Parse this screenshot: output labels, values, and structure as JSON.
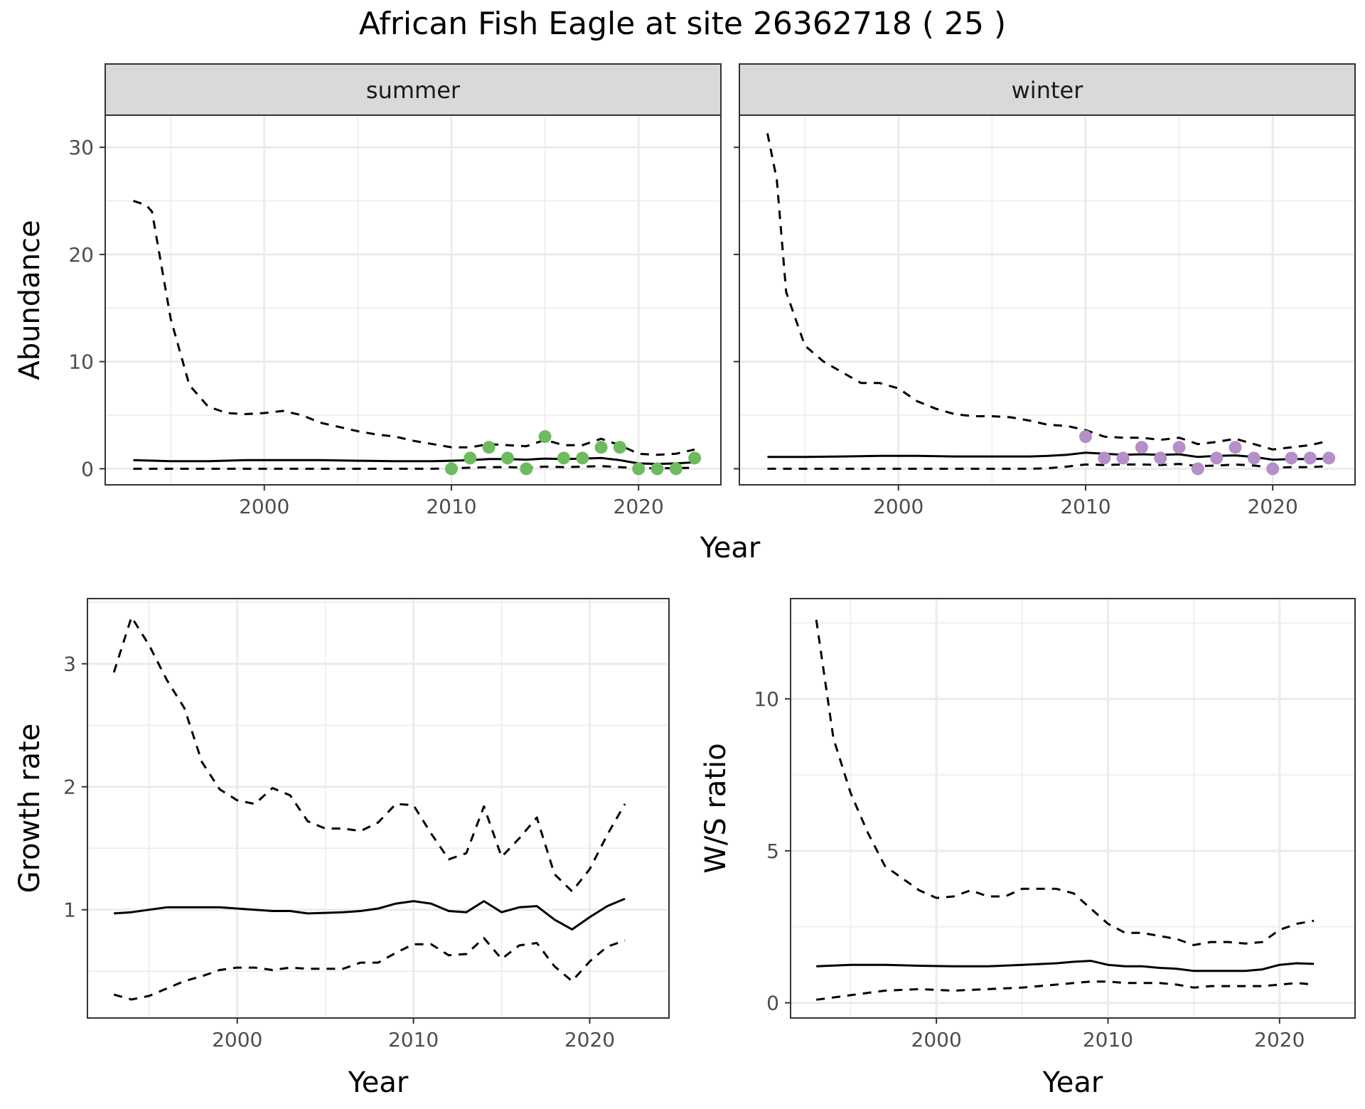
{
  "title": "African Fish Eagle at site 26362718 ( 25 )",
  "colors": {
    "summer_points": "#6dbb5f",
    "winter_points": "#b48fc8",
    "lines": "#000000",
    "strip_fill": "#d9d9d9",
    "grid": "#ebebeb"
  },
  "chart_data": [
    {
      "type": "line",
      "facet": "summer",
      "title": "",
      "xlabel": "Year",
      "ylabel": "Abundance",
      "xlim": [
        1991.5,
        2024.4
      ],
      "ylim": [
        -1.5,
        33
      ],
      "xticks": [
        2000,
        2010,
        2020
      ],
      "yticks": [
        0,
        10,
        20,
        30
      ],
      "grid": true,
      "series": [
        {
          "style": "solid",
          "x": [
            1993,
            1995,
            1997,
            1999,
            2001,
            2003,
            2005,
            2007,
            2009,
            2010,
            2011,
            2012,
            2013,
            2014,
            2015,
            2016,
            2017,
            2018,
            2019,
            2020,
            2021,
            2022,
            2023
          ],
          "y": [
            0.8,
            0.7,
            0.7,
            0.8,
            0.8,
            0.8,
            0.75,
            0.7,
            0.7,
            0.75,
            0.8,
            0.9,
            0.9,
            0.85,
            0.95,
            0.9,
            0.95,
            1.0,
            0.8,
            0.5,
            0.45,
            0.5,
            0.6
          ]
        },
        {
          "style": "dashed",
          "x": [
            1993,
            1993.7,
            1994,
            1995,
            1996,
            1997,
            1998,
            1999,
            2000,
            2001,
            2002,
            2003,
            2004,
            2005,
            2006,
            2007,
            2008,
            2009,
            2010,
            2011,
            2012,
            2013,
            2014,
            2015,
            2016,
            2017,
            2018,
            2019,
            2020,
            2021,
            2022,
            2023
          ],
          "y": [
            25,
            24.6,
            24,
            14,
            7.8,
            5.8,
            5.2,
            5.1,
            5.2,
            5.4,
            5.0,
            4.3,
            3.9,
            3.5,
            3.2,
            3.0,
            2.6,
            2.3,
            2.0,
            2.0,
            2.3,
            2.2,
            2.1,
            2.7,
            2.2,
            2.2,
            2.8,
            2.2,
            1.4,
            1.3,
            1.4,
            1.8
          ]
        },
        {
          "style": "dashed",
          "x": [
            1993,
            1995,
            1997,
            1999,
            2001,
            2003,
            2005,
            2007,
            2009,
            2010,
            2011,
            2012,
            2013,
            2014,
            2015,
            2016,
            2017,
            2018,
            2019,
            2020,
            2021,
            2022,
            2023
          ],
          "y": [
            0,
            0,
            0,
            0,
            0,
            0,
            0,
            0,
            0,
            0.05,
            0.1,
            0.15,
            0.15,
            0.1,
            0.2,
            0.15,
            0.2,
            0.25,
            0.15,
            0.05,
            0.05,
            0.05,
            0.1
          ]
        }
      ],
      "points": {
        "x": [
          2010,
          2011,
          2012,
          2013,
          2014,
          2015,
          2016,
          2017,
          2018,
          2019,
          2020,
          2021,
          2022,
          2023
        ],
        "y": [
          0,
          1,
          2,
          1,
          0,
          3,
          1,
          1,
          2,
          2,
          0,
          0,
          0,
          1
        ]
      }
    },
    {
      "type": "line",
      "facet": "winter",
      "title": "",
      "xlabel": "Year",
      "ylabel": "Abundance",
      "xlim": [
        1991.5,
        2024.4
      ],
      "ylim": [
        -1.5,
        33
      ],
      "xticks": [
        2000,
        2010,
        2020
      ],
      "yticks": [
        0,
        10,
        20,
        30
      ],
      "grid": true,
      "series": [
        {
          "style": "solid",
          "x": [
            1993,
            1995,
            1997,
            1999,
            2001,
            2003,
            2005,
            2007,
            2008,
            2009,
            2010,
            2011,
            2012,
            2013,
            2014,
            2015,
            2016,
            2017,
            2018,
            2019,
            2020,
            2021,
            2022,
            2023
          ],
          "y": [
            1.1,
            1.1,
            1.15,
            1.2,
            1.2,
            1.15,
            1.15,
            1.15,
            1.2,
            1.3,
            1.5,
            1.4,
            1.3,
            1.35,
            1.3,
            1.35,
            1.1,
            1.2,
            1.25,
            1.1,
            0.85,
            0.9,
            0.9,
            0.95
          ]
        },
        {
          "style": "dashed",
          "x": [
            1993,
            1993.5,
            1994,
            1995,
            1996,
            1997,
            1998,
            1999,
            2000,
            2001,
            2002,
            2003,
            2004,
            2005,
            2006,
            2007,
            2008,
            2009,
            2010,
            2011,
            2012,
            2013,
            2014,
            2015,
            2016,
            2017,
            2018,
            2019,
            2020,
            2021,
            2022,
            2023
          ],
          "y": [
            31.3,
            27,
            16.5,
            11.5,
            10,
            9,
            8,
            8,
            7.5,
            6.3,
            5.6,
            5.1,
            4.9,
            4.9,
            4.8,
            4.5,
            4.1,
            4.0,
            3.6,
            3.0,
            2.9,
            2.9,
            2.7,
            2.9,
            2.3,
            2.5,
            2.8,
            2.3,
            1.8,
            2.0,
            2.2,
            2.6
          ]
        },
        {
          "style": "dashed",
          "x": [
            1993,
            1995,
            1997,
            1999,
            2001,
            2003,
            2005,
            2007,
            2008,
            2009,
            2010,
            2011,
            2012,
            2013,
            2014,
            2015,
            2016,
            2017,
            2018,
            2019,
            2020,
            2021,
            2022,
            2023
          ],
          "y": [
            0,
            0,
            0,
            0,
            0,
            0,
            0,
            0,
            0.05,
            0.2,
            0.4,
            0.35,
            0.4,
            0.4,
            0.35,
            0.45,
            0.25,
            0.3,
            0.4,
            0.3,
            0.1,
            0.15,
            0.15,
            0.25
          ]
        }
      ],
      "points": {
        "x": [
          2010,
          2011,
          2012,
          2013,
          2014,
          2015,
          2016,
          2017,
          2018,
          2019,
          2020,
          2021,
          2022,
          2023
        ],
        "y": [
          3,
          1,
          1,
          2,
          1,
          2,
          0,
          1,
          2,
          1,
          0,
          1,
          1,
          1
        ]
      }
    },
    {
      "type": "line",
      "title": "",
      "xlabel": "Year",
      "ylabel": "Growth rate",
      "xlim": [
        1991.5,
        2024.5
      ],
      "ylim": [
        0.12,
        3.53
      ],
      "xticks": [
        2000,
        2010,
        2020
      ],
      "yticks": [
        1,
        2,
        3
      ],
      "grid": true,
      "series": [
        {
          "style": "solid",
          "x": [
            1993,
            1994,
            1995,
            1996,
            1997,
            1998,
            1999,
            2000,
            2001,
            2002,
            2003,
            2004,
            2005,
            2006,
            2007,
            2008,
            2009,
            2010,
            2011,
            2012,
            2013,
            2014,
            2015,
            2016,
            2017,
            2018,
            2019,
            2020,
            2021,
            2022
          ],
          "y": [
            0.97,
            0.98,
            1.0,
            1.02,
            1.02,
            1.02,
            1.02,
            1.01,
            1.0,
            0.99,
            0.99,
            0.97,
            0.975,
            0.98,
            0.99,
            1.01,
            1.05,
            1.07,
            1.05,
            0.99,
            0.98,
            1.07,
            0.98,
            1.02,
            1.03,
            0.92,
            0.84,
            0.94,
            1.03,
            1.09
          ]
        },
        {
          "style": "dashed",
          "x": [
            1993,
            1994,
            1995,
            1996,
            1997,
            1998,
            1999,
            2000,
            2001,
            2002,
            2003,
            2004,
            2005,
            2006,
            2007,
            2008,
            2009,
            2010,
            2011,
            2012,
            2013,
            2014,
            2015,
            2016,
            2017,
            2018,
            2019,
            2020,
            2021,
            2022
          ],
          "y": [
            2.93,
            3.38,
            3.15,
            2.87,
            2.64,
            2.2,
            1.98,
            1.89,
            1.86,
            1.99,
            1.93,
            1.72,
            1.66,
            1.66,
            1.64,
            1.71,
            1.86,
            1.85,
            1.62,
            1.41,
            1.46,
            1.84,
            1.43,
            1.58,
            1.75,
            1.29,
            1.15,
            1.33,
            1.61,
            1.86
          ]
        },
        {
          "style": "dashed",
          "x": [
            1993,
            1994,
            1995,
            1996,
            1997,
            1998,
            1999,
            2000,
            2001,
            2002,
            2003,
            2004,
            2005,
            2006,
            2007,
            2008,
            2009,
            2010,
            2011,
            2012,
            2013,
            2014,
            2015,
            2016,
            2017,
            2018,
            2019,
            2020,
            2021,
            2022
          ],
          "y": [
            0.31,
            0.27,
            0.3,
            0.36,
            0.42,
            0.46,
            0.51,
            0.53,
            0.53,
            0.51,
            0.53,
            0.52,
            0.52,
            0.52,
            0.57,
            0.57,
            0.65,
            0.72,
            0.72,
            0.63,
            0.64,
            0.77,
            0.6,
            0.71,
            0.73,
            0.54,
            0.42,
            0.58,
            0.7,
            0.75
          ]
        }
      ]
    },
    {
      "type": "line",
      "title": "",
      "xlabel": "Year",
      "ylabel": "W/S ratio",
      "xlim": [
        1991.5,
        2024.4
      ],
      "ylim": [
        -0.5,
        13.3
      ],
      "xticks": [
        2000,
        2010,
        2020
      ],
      "yticks": [
        0,
        5,
        10
      ],
      "grid": true,
      "series": [
        {
          "style": "solid",
          "x": [
            1993,
            1995,
            1997,
            1999,
            2001,
            2003,
            2005,
            2007,
            2008,
            2009,
            2010,
            2011,
            2012,
            2013,
            2014,
            2015,
            2016,
            2017,
            2018,
            2019,
            2020,
            2021,
            2022
          ],
          "y": [
            1.2,
            1.25,
            1.25,
            1.22,
            1.2,
            1.2,
            1.25,
            1.3,
            1.35,
            1.38,
            1.25,
            1.2,
            1.2,
            1.15,
            1.12,
            1.05,
            1.05,
            1.05,
            1.05,
            1.1,
            1.25,
            1.3,
            1.28
          ]
        },
        {
          "style": "dashed",
          "x": [
            1993,
            1994,
            1995,
            1996,
            1997,
            1998,
            1999,
            2000,
            2001,
            2002,
            2003,
            2004,
            2005,
            2006,
            2007,
            2008,
            2009,
            2010,
            2011,
            2012,
            2013,
            2014,
            2015,
            2016,
            2017,
            2018,
            2019,
            2020,
            2021,
            2022
          ],
          "y": [
            12.6,
            8.7,
            6.9,
            5.6,
            4.5,
            4.1,
            3.7,
            3.45,
            3.5,
            3.7,
            3.5,
            3.5,
            3.75,
            3.75,
            3.75,
            3.6,
            3.1,
            2.6,
            2.3,
            2.3,
            2.2,
            2.1,
            1.9,
            2.0,
            2.0,
            1.95,
            2.0,
            2.4,
            2.6,
            2.7
          ]
        },
        {
          "style": "dashed",
          "x": [
            1993,
            1995,
            1997,
            1999,
            2001,
            2003,
            2005,
            2007,
            2008,
            2009,
            2010,
            2011,
            2012,
            2013,
            2014,
            2015,
            2016,
            2017,
            2018,
            2019,
            2020,
            2021,
            2022
          ],
          "y": [
            0.1,
            0.25,
            0.4,
            0.45,
            0.4,
            0.45,
            0.5,
            0.6,
            0.65,
            0.7,
            0.7,
            0.65,
            0.65,
            0.65,
            0.6,
            0.5,
            0.55,
            0.55,
            0.55,
            0.55,
            0.6,
            0.65,
            0.6
          ]
        }
      ]
    }
  ]
}
